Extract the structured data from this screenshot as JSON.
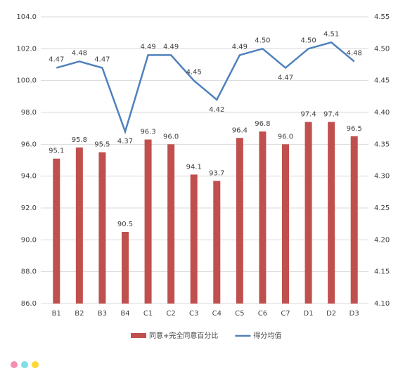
{
  "chart_data": {
    "type": "bar-line",
    "categories": [
      "B1",
      "B2",
      "B3",
      "B4",
      "C1",
      "C2",
      "C3",
      "C4",
      "C5",
      "C6",
      "C7",
      "D1",
      "D2",
      "D3"
    ],
    "series": [
      {
        "name": "同意+完全同意百分比",
        "type": "bar",
        "color": "#c0504d",
        "values": [
          95.1,
          95.8,
          95.5,
          90.5,
          96.3,
          96.0,
          94.1,
          93.7,
          96.4,
          96.8,
          96.0,
          97.4,
          97.4,
          96.5
        ],
        "value_labels": [
          "95.1",
          "95.8",
          "95.5",
          "90.5",
          "96.3",
          "96.0",
          "94.1",
          "93.7",
          "96.4",
          "96.8",
          "96.0",
          "97.4",
          "97.4",
          "96.5"
        ]
      },
      {
        "name": "得分均值",
        "type": "line",
        "axis": "y2",
        "color": "#4f81bd",
        "values": [
          4.47,
          4.48,
          4.47,
          4.37,
          4.49,
          4.49,
          4.45,
          4.42,
          4.49,
          4.5,
          4.47,
          4.5,
          4.51,
          4.48
        ],
        "value_labels": [
          "4.47",
          "4.48",
          "4.47",
          "4.37",
          "4.49",
          "4.49",
          "4.45",
          "4.42",
          "4.49",
          "4.50",
          "4.47",
          "4.50",
          "4.51",
          "4.48"
        ]
      }
    ],
    "ylim": [
      86,
      104
    ],
    "yticks": [
      {
        "value": 86,
        "label": "86.0"
      },
      {
        "value": 88,
        "label": "88.0"
      },
      {
        "value": 90,
        "label": "90.0"
      },
      {
        "value": 92,
        "label": "92.0"
      },
      {
        "value": 94,
        "label": "94.0"
      },
      {
        "value": 96,
        "label": "96.0"
      },
      {
        "value": 98,
        "label": "98.0"
      },
      {
        "value": 100,
        "label": "100.0"
      },
      {
        "value": 102,
        "label": "102.0"
      },
      {
        "value": 104,
        "label": "104.0"
      }
    ],
    "y2lim": [
      4.1,
      4.55
    ],
    "y2ticks": [
      {
        "value": 4.1,
        "label": "4.10"
      },
      {
        "value": 4.15,
        "label": "4.15"
      },
      {
        "value": 4.2,
        "label": "4.20"
      },
      {
        "value": 4.25,
        "label": "4.25"
      },
      {
        "value": 4.3,
        "label": "4.30"
      },
      {
        "value": 4.35,
        "label": "4.35"
      },
      {
        "value": 4.4,
        "label": "4.40"
      },
      {
        "value": 4.45,
        "label": "4.45"
      },
      {
        "value": 4.5,
        "label": "4.50"
      },
      {
        "value": 4.55,
        "label": "4.55"
      }
    ],
    "grid": true,
    "legend": "bottom"
  }
}
